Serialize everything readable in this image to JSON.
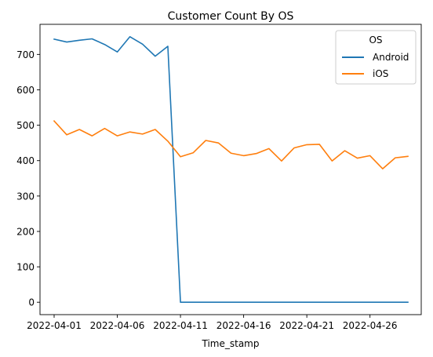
{
  "chart_data": {
    "type": "line",
    "title": "Customer Count By OS",
    "xlabel": "Time_stamp",
    "ylabel": "",
    "x_type": "date",
    "x": [
      "2022-04-01",
      "2022-04-02",
      "2022-04-03",
      "2022-04-04",
      "2022-04-05",
      "2022-04-06",
      "2022-04-07",
      "2022-04-08",
      "2022-04-09",
      "2022-04-10",
      "2022-04-11",
      "2022-04-12",
      "2022-04-13",
      "2022-04-14",
      "2022-04-15",
      "2022-04-16",
      "2022-04-17",
      "2022-04-18",
      "2022-04-19",
      "2022-04-20",
      "2022-04-21",
      "2022-04-22",
      "2022-04-23",
      "2022-04-24",
      "2022-04-25",
      "2022-04-26",
      "2022-04-27",
      "2022-04-28",
      "2022-04-29"
    ],
    "x_ticks": [
      "2022-04-01",
      "2022-04-06",
      "2022-04-11",
      "2022-04-16",
      "2022-04-21",
      "2022-04-26"
    ],
    "ylim": [
      -35,
      785
    ],
    "y_ticks": [
      0,
      100,
      200,
      300,
      400,
      500,
      600,
      700
    ],
    "grid": false,
    "legend": {
      "title": "OS",
      "placement": "upper right"
    },
    "series": [
      {
        "name": "Android",
        "color": "#1f77b4",
        "values": [
          743,
          735,
          740,
          744,
          728,
          707,
          750,
          729,
          695,
          723,
          0,
          0,
          0,
          0,
          0,
          0,
          0,
          0,
          0,
          0,
          0,
          0,
          0,
          0,
          0,
          0,
          0,
          0,
          0
        ]
      },
      {
        "name": "iOS",
        "color": "#ff7f0e",
        "values": [
          512,
          473,
          488,
          470,
          491,
          470,
          481,
          475,
          488,
          455,
          411,
          422,
          457,
          450,
          421,
          414,
          420,
          434,
          399,
          436,
          445,
          446,
          399,
          428,
          407,
          414,
          377,
          408,
          412
        ]
      }
    ]
  }
}
